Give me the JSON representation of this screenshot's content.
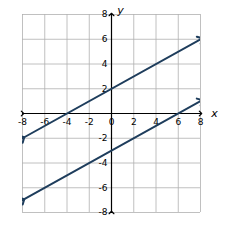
{
  "chart_data": {
    "type": "line",
    "x_label": "x",
    "y_label": "y",
    "x": [
      -8,
      8
    ],
    "series": [
      {
        "color": "#1e3d5c",
        "values": [
          -2,
          6
        ],
        "marker": "arrow"
      },
      {
        "color": "#1e3d5c",
        "values": [
          -7,
          1
        ],
        "marker": "arrow"
      }
    ],
    "xlim": [
      -8,
      8
    ],
    "ylim": [
      -8,
      8
    ],
    "xticks": [
      -8,
      -6,
      -4,
      -2,
      0,
      2,
      4,
      6,
      8
    ],
    "yticks": [
      -8,
      -6,
      -4,
      -2,
      2,
      4,
      6,
      8
    ],
    "grid": true
  }
}
